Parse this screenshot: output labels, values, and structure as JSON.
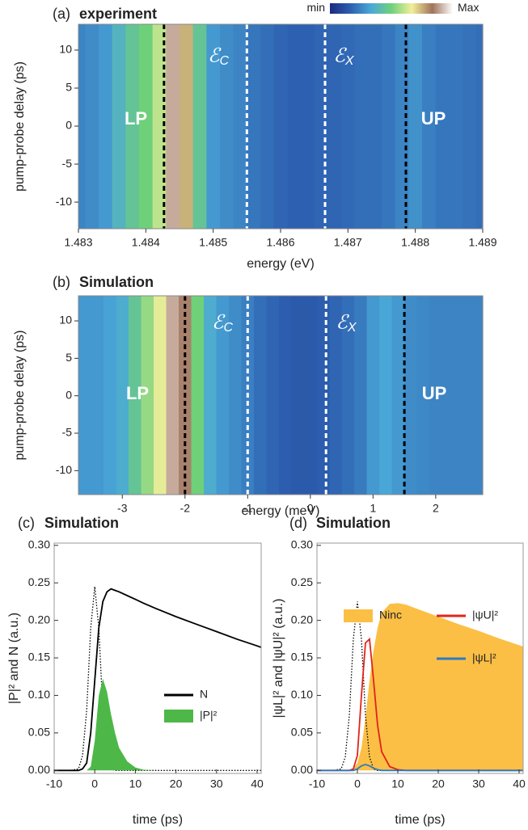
{
  "chart_data": [
    {
      "type": "heatmap",
      "panel": "(a)",
      "title": "experiment",
      "xlabel": "energy (eV)",
      "ylabel": "pump-probe delay (ps)",
      "xlim": [
        1.483,
        1.489
      ],
      "xticks": [
        1.483,
        1.484,
        1.485,
        1.486,
        1.487,
        1.488,
        1.489
      ],
      "ylim": [
        -13.5,
        13.4
      ],
      "yticks": [
        -10,
        -5,
        0,
        5,
        10
      ],
      "x": [
        1.483,
        1.4832,
        1.4834,
        1.4836,
        1.4838,
        1.484,
        1.4842,
        1.4844,
        1.4846,
        1.4848,
        1.485,
        1.4852,
        1.4854,
        1.4856,
        1.4858,
        1.486,
        1.4862,
        1.4864,
        1.4866,
        1.4868,
        1.487,
        1.4872,
        1.4874,
        1.4876,
        1.4878,
        1.488,
        1.4882,
        1.4884,
        1.4886,
        1.4888,
        1.489
      ],
      "z": [
        0.25,
        0.27,
        0.3,
        0.38,
        0.45,
        0.5,
        0.6,
        0.9,
        0.75,
        0.45,
        0.3,
        0.27,
        0.25,
        0.22,
        0.2,
        0.18,
        0.17,
        0.17,
        0.18,
        0.18,
        0.19,
        0.2,
        0.2,
        0.22,
        0.25,
        0.28,
        0.24,
        0.22,
        0.22,
        0.21,
        0.2
      ],
      "zlim": [
        0,
        1
      ],
      "colormap": [
        "#1c2a80",
        "#2d5fb0",
        "#4aa8d8",
        "#6fd07a",
        "#f2ef9a",
        "#a0735a",
        "#ffffff"
      ],
      "colorbar": true,
      "zticks": [
        {
          "value": 0,
          "label": "min"
        },
        {
          "value": 1,
          "label": "Max"
        }
      ],
      "vlines": [
        {
          "x": 1.48427,
          "color": "#000000"
        },
        {
          "x": 1.4855,
          "color": "#ffffff"
        },
        {
          "x": 1.48666,
          "color": "#ffffff"
        },
        {
          "x": 1.48786,
          "color": "#000000"
        }
      ],
      "annotations": [
        {
          "text": "LP"
        },
        {
          "text": "UP"
        },
        {
          "text": "ℰ",
          "sub": "C"
        },
        {
          "text": "ℰ",
          "sub": "X"
        }
      ]
    },
    {
      "type": "heatmap",
      "panel": "(b)",
      "title": "Simulation",
      "xlabel": "energy (meV)",
      "ylabel": "pump-probe delay (ps)",
      "xlim": [
        -3.7,
        2.75
      ],
      "xticks": [
        -3,
        -2,
        -1,
        0,
        1,
        2
      ],
      "ylim": [
        -13.2,
        13.35
      ],
      "yticks": [
        -10,
        -5,
        0,
        5,
        10
      ],
      "x": [
        -3.6,
        -3.4,
        -3.2,
        -3.0,
        -2.8,
        -2.6,
        -2.4,
        -2.2,
        -2.0,
        -1.8,
        -1.6,
        -1.4,
        -1.2,
        -1.0,
        -0.8,
        -0.6,
        -0.4,
        -0.2,
        0,
        0.2,
        0.4,
        0.6,
        0.8,
        1.0,
        1.2,
        1.4,
        1.6,
        1.8,
        2.0,
        2.2,
        2.4,
        2.6
      ],
      "z": [
        0.3,
        0.3,
        0.32,
        0.35,
        0.45,
        0.55,
        0.65,
        0.9,
        0.85,
        0.5,
        0.35,
        0.3,
        0.27,
        0.24,
        0.2,
        0.18,
        0.16,
        0.15,
        0.15,
        0.16,
        0.18,
        0.2,
        0.23,
        0.3,
        0.33,
        0.3,
        0.27,
        0.26,
        0.25,
        0.25,
        0.25,
        0.25
      ],
      "zlim": [
        0,
        1
      ],
      "colormap": [
        "#1c2a80",
        "#2d5fb0",
        "#4aa8d8",
        "#6fd07a",
        "#f2ef9a",
        "#a0735a",
        "#ffffff"
      ],
      "colorbar": false,
      "vlines": [
        {
          "x": -2.0,
          "color": "#000000"
        },
        {
          "x": -1.0,
          "color": "#ffffff"
        },
        {
          "x": 0.25,
          "color": "#ffffff"
        },
        {
          "x": 1.5,
          "color": "#000000"
        }
      ],
      "annotations": [
        {
          "text": "LP"
        },
        {
          "text": "UP"
        },
        {
          "text": "ℰ",
          "sub": "C"
        },
        {
          "text": "ℰ",
          "sub": "X"
        }
      ]
    },
    {
      "type": "line",
      "panel": "(c)",
      "title": "Simulation",
      "xlabel": "time (ps)",
      "ylabel": "|P|² and N (a.u.)",
      "xlim": [
        -10,
        41
      ],
      "xticks": [
        -10,
        0,
        10,
        20,
        30,
        40
      ],
      "ylim": [
        -0.004,
        0.303
      ],
      "yticks": [
        {
          "value": 0,
          "label": "0.00"
        },
        {
          "value": 0.05,
          "label": "0.05"
        },
        {
          "value": 0.1,
          "label": "0.10"
        },
        {
          "value": 0.15,
          "label": "0.15"
        },
        {
          "value": 0.2,
          "label": "0.20"
        },
        {
          "value": 0.25,
          "label": "0.25"
        },
        {
          "value": 0.3,
          "label": "0.30"
        }
      ],
      "x": [
        -10,
        -8,
        -6,
        -4,
        -3,
        -2,
        -1,
        0,
        1,
        2,
        3,
        4,
        5,
        6,
        8,
        10,
        12,
        15,
        20,
        25,
        30,
        35,
        40,
        41
      ],
      "series": [
        {
          "color": "#000000",
          "dash": "dotted",
          "values": [
            0,
            0,
            0,
            0.002,
            0.02,
            0.08,
            0.19,
            0.245,
            0.19,
            0.08,
            0.02,
            0.002,
            0,
            0,
            0,
            0,
            0,
            0,
            0,
            0,
            0,
            0,
            0,
            0
          ]
        },
        {
          "name": "N",
          "color": "#000000",
          "values": [
            0,
            0,
            0,
            0,
            0.002,
            0.01,
            0.05,
            0.12,
            0.19,
            0.225,
            0.238,
            0.242,
            0.24,
            0.238,
            0.233,
            0.228,
            0.223,
            0.216,
            0.205,
            0.195,
            0.185,
            0.175,
            0.166,
            0.164
          ]
        },
        {
          "name": "|P|²",
          "color": "#4db848",
          "fill": true,
          "values": [
            0,
            0,
            0,
            0,
            0,
            0,
            0.005,
            0.04,
            0.1,
            0.122,
            0.105,
            0.075,
            0.05,
            0.03,
            0.012,
            0.004,
            0.001,
            0,
            0,
            0,
            0,
            0,
            0,
            0
          ]
        }
      ]
    },
    {
      "type": "line",
      "panel": "(d)",
      "title": "Simulation",
      "xlabel": "time (ps)",
      "ylabel": "|ψL|² and |ψU|² (a.u.)",
      "xlim": [
        -10,
        41
      ],
      "xticks": [
        -10,
        0,
        10,
        20,
        30,
        40
      ],
      "ylim": [
        -0.004,
        0.303
      ],
      "yticks": [
        {
          "value": 0,
          "label": "0.00"
        },
        {
          "value": 0.05,
          "label": "0.05"
        },
        {
          "value": 0.1,
          "label": "0.10"
        },
        {
          "value": 0.15,
          "label": "0.15"
        },
        {
          "value": 0.2,
          "label": "0.20"
        },
        {
          "value": 0.25,
          "label": "0.25"
        },
        {
          "value": 0.3,
          "label": "0.30"
        }
      ],
      "x": [
        -10,
        -8,
        -6,
        -4,
        -3,
        -2,
        -1,
        0,
        1,
        2,
        3,
        4,
        5,
        6,
        8,
        10,
        12,
        15,
        20,
        25,
        30,
        35,
        40,
        41
      ],
      "series": [
        {
          "name": "Ninc",
          "color": "#fbbf45",
          "fill": true,
          "values": [
            0,
            0,
            0,
            0,
            0,
            0,
            0.002,
            0.01,
            0.03,
            0.07,
            0.12,
            0.16,
            0.19,
            0.21,
            0.222,
            0.223,
            0.221,
            0.215,
            0.205,
            0.195,
            0.186,
            0.176,
            0.167,
            0.165
          ]
        },
        {
          "color": "#000000",
          "dash": "dotted",
          "values": [
            0,
            0,
            0,
            0.002,
            0.018,
            0.073,
            0.175,
            0.225,
            0.175,
            0.073,
            0.018,
            0.002,
            0,
            0,
            0,
            0,
            0,
            0,
            0,
            0,
            0,
            0,
            0,
            0
          ]
        },
        {
          "name": "|ψU|²",
          "color": "#e2231a",
          "values": [
            0,
            0,
            0,
            0,
            0,
            0,
            0.002,
            0.02,
            0.1,
            0.17,
            0.175,
            0.12,
            0.06,
            0.025,
            0.005,
            0.001,
            0,
            0,
            0,
            0,
            0,
            0,
            0,
            0
          ]
        },
        {
          "name": "|ψL|²",
          "color": "#2c7bc0",
          "values": [
            0,
            0,
            0,
            0,
            0,
            0,
            0,
            0.002,
            0.006,
            0.008,
            0.006,
            0.003,
            0.001,
            0,
            0,
            0,
            0,
            0,
            0,
            0,
            0,
            0,
            0,
            0
          ]
        }
      ]
    }
  ]
}
